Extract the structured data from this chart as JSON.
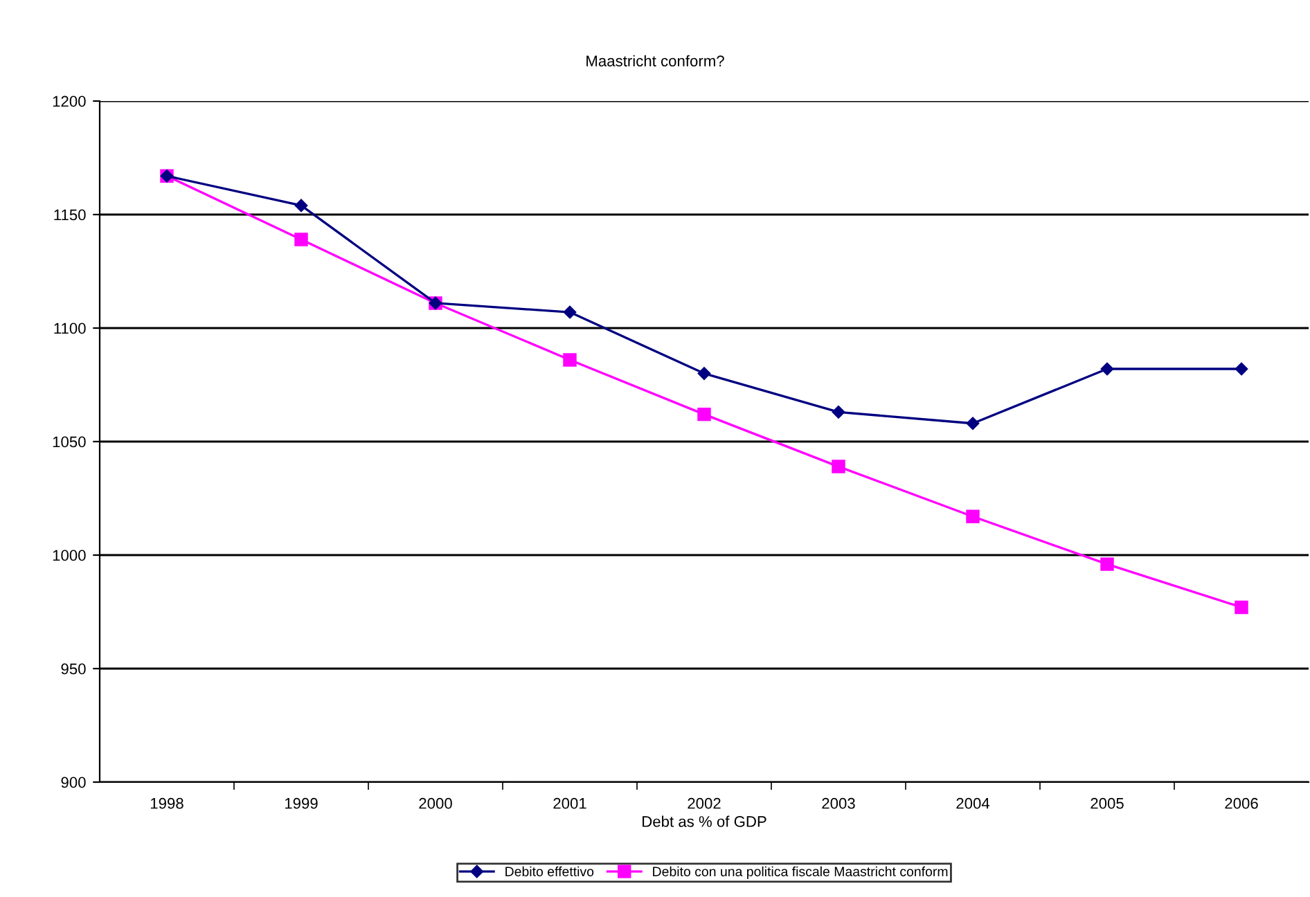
{
  "chart_data": {
    "type": "line",
    "title": "Maastricht conform?",
    "xlabel": "Debt as % of GDP",
    "categories": [
      "1998",
      "1999",
      "2000",
      "2001",
      "2002",
      "2003",
      "2004",
      "2005",
      "2006"
    ],
    "series": [
      {
        "name": "Debito effettivo",
        "color": "#000080",
        "marker": "diamond",
        "values": [
          1167,
          1154,
          1111,
          1107,
          1080,
          1063,
          1058,
          1082,
          1082
        ]
      },
      {
        "name": "Debito con una politica fiscale Maastricht conform",
        "color": "#ff00ff",
        "marker": "square",
        "values": [
          1167,
          1139,
          1111,
          1086,
          1062,
          1039,
          1017,
          996,
          977
        ]
      }
    ],
    "ylim": [
      900,
      1200
    ],
    "yticks": [
      900,
      950,
      1000,
      1050,
      1100,
      1150,
      1200
    ],
    "grid": "y",
    "legend": "bottom",
    "line_style": "solid"
  }
}
